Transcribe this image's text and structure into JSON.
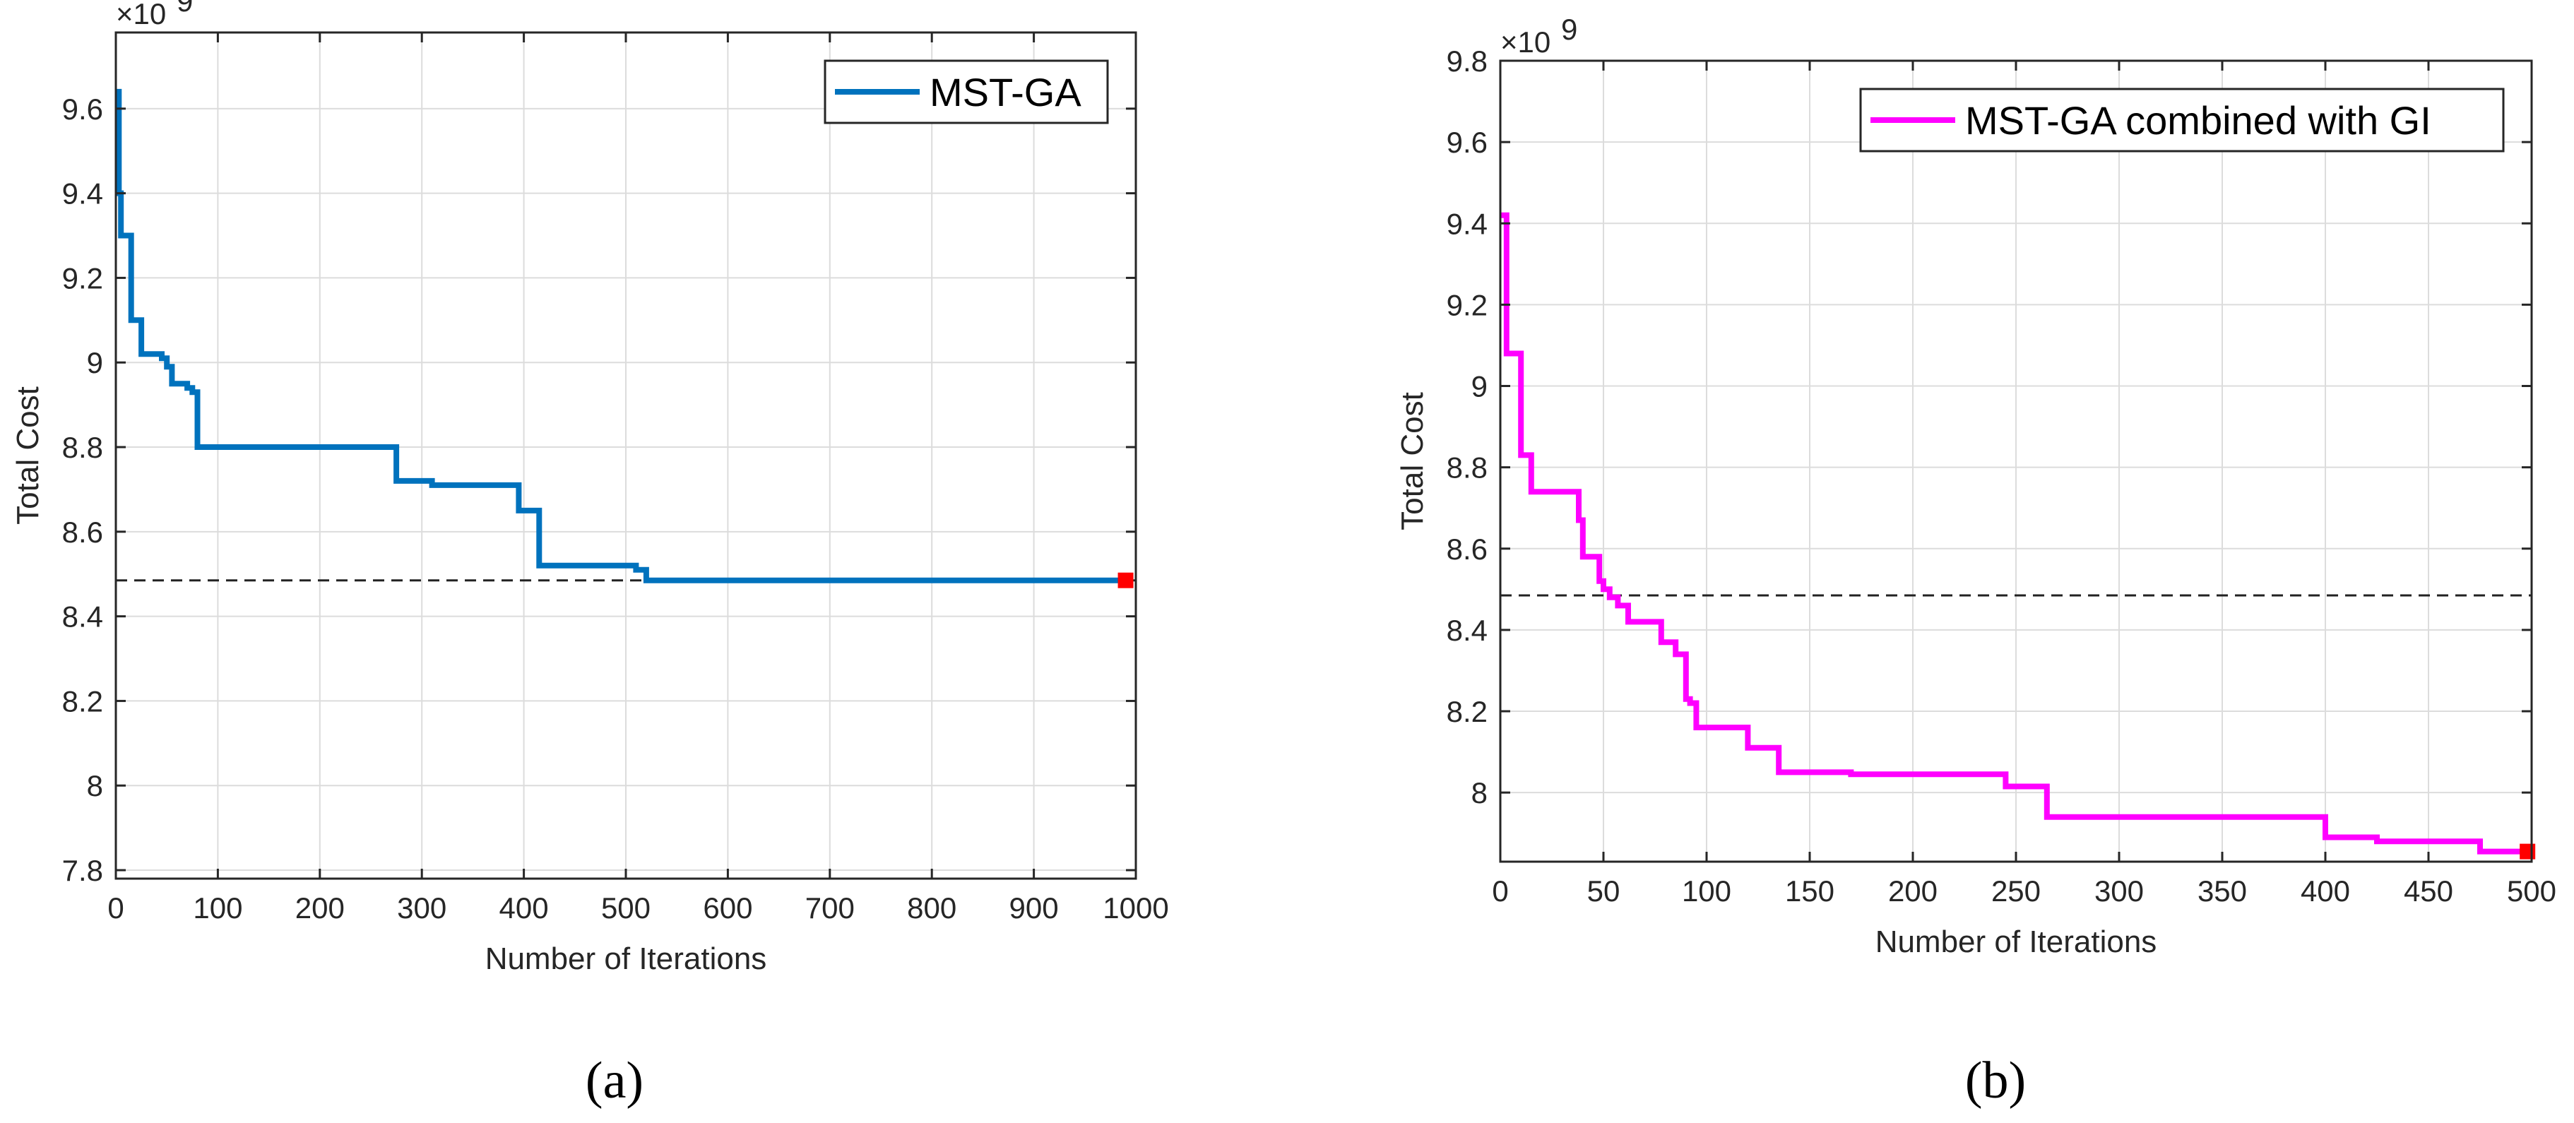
{
  "chart_data": [
    {
      "type": "line",
      "panel_label": "(a)",
      "xlabel": "Number of Iterations",
      "ylabel": "Total Cost",
      "exponent_label": "×10",
      "exponent_power": "9",
      "xlim": [
        0,
        1000
      ],
      "ylim": [
        7.78,
        9.78
      ],
      "xticks": [
        0,
        100,
        200,
        300,
        400,
        500,
        600,
        700,
        800,
        900,
        1000
      ],
      "xtick_labels": [
        "0",
        "100",
        "200",
        "300",
        "400",
        "500",
        "600",
        "700",
        "800",
        "900",
        "1000"
      ],
      "yticks": [
        7.8,
        8.0,
        8.2,
        8.4,
        8.6,
        8.8,
        9.0,
        9.2,
        9.4,
        9.6
      ],
      "ytick_labels": [
        "7.8",
        "8",
        "8.2",
        "8.4",
        "8.6",
        "8.8",
        "9",
        "9.2",
        "9.4",
        "9.6"
      ],
      "grid": true,
      "legend_position": "top-right",
      "reference_line": 8.485,
      "series": [
        {
          "name": "MST-GA",
          "color": "#0072BD",
          "x": [
            0,
            3,
            3,
            5,
            5,
            8,
            8,
            15,
            15,
            25,
            25,
            45,
            45,
            50,
            50,
            55,
            55,
            65,
            65,
            70,
            70,
            75,
            75,
            80,
            80,
            160,
            160,
            270,
            270,
            275,
            275,
            310,
            310,
            395,
            395,
            410,
            410,
            415,
            415,
            510,
            510,
            520,
            520,
            990
          ],
          "y": [
            9.64,
            9.64,
            9.4,
            9.4,
            9.3,
            9.3,
            9.3,
            9.3,
            9.1,
            9.1,
            9.02,
            9.02,
            9.01,
            9.01,
            8.99,
            8.99,
            8.95,
            8.95,
            8.95,
            8.95,
            8.94,
            8.94,
            8.93,
            8.93,
            8.8,
            8.8,
            8.8,
            8.8,
            8.8,
            8.8,
            8.72,
            8.72,
            8.71,
            8.71,
            8.65,
            8.65,
            8.65,
            8.65,
            8.52,
            8.52,
            8.51,
            8.51,
            8.485,
            8.485
          ]
        }
      ],
      "end_marker": {
        "x": 990,
        "y": 8.485,
        "color": "#ff0000"
      }
    },
    {
      "type": "line",
      "panel_label": "(b)",
      "xlabel": "Number of Iterations",
      "ylabel": "Total Cost",
      "exponent_label": "×10",
      "exponent_power": "9",
      "xlim": [
        0,
        500
      ],
      "ylim": [
        7.83,
        9.8
      ],
      "xticks": [
        0,
        50,
        100,
        150,
        200,
        250,
        300,
        350,
        400,
        450,
        500
      ],
      "xtick_labels": [
        "0",
        "50",
        "100",
        "150",
        "200",
        "250",
        "300",
        "350",
        "400",
        "450",
        "500"
      ],
      "yticks": [
        8.0,
        8.2,
        8.4,
        8.6,
        8.8,
        9.0,
        9.2,
        9.4,
        9.6,
        9.8
      ],
      "ytick_labels": [
        "8",
        "8.2",
        "8.4",
        "8.6",
        "8.8",
        "9",
        "9.2",
        "9.4",
        "9.6",
        "9.8"
      ],
      "grid": true,
      "legend_position": "top-right",
      "reference_line": 8.485,
      "series": [
        {
          "name": "MST-GA combined with GI",
          "color": "#FF00FF",
          "x": [
            0,
            3,
            3,
            5,
            5,
            10,
            10,
            15,
            15,
            20,
            20,
            38,
            38,
            40,
            40,
            48,
            48,
            50,
            50,
            53,
            53,
            57,
            57,
            62,
            62,
            78,
            78,
            85,
            85,
            90,
            90,
            92,
            92,
            95,
            95,
            120,
            120,
            135,
            135,
            170,
            170,
            245,
            245,
            265,
            265,
            400,
            400,
            425,
            425,
            475,
            475,
            498
          ],
          "y": [
            9.42,
            9.42,
            9.08,
            9.08,
            9.08,
            9.08,
            8.83,
            8.83,
            8.74,
            8.74,
            8.74,
            8.74,
            8.67,
            8.67,
            8.58,
            8.58,
            8.52,
            8.52,
            8.5,
            8.5,
            8.48,
            8.48,
            8.46,
            8.46,
            8.42,
            8.42,
            8.37,
            8.37,
            8.34,
            8.34,
            8.23,
            8.23,
            8.22,
            8.22,
            8.16,
            8.16,
            8.11,
            8.11,
            8.05,
            8.05,
            8.045,
            8.045,
            8.015,
            8.015,
            7.94,
            7.94,
            7.89,
            7.89,
            7.88,
            7.88,
            7.855,
            7.855
          ]
        }
      ],
      "end_marker": {
        "x": 498,
        "y": 7.855,
        "color": "#ff0000"
      }
    }
  ]
}
